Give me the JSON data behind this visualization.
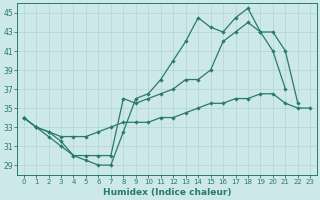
{
  "xlabel": "Humidex (Indice chaleur)",
  "bg_color": "#cce8e8",
  "grid_color": "#b0d4d4",
  "line_color": "#2a7a6a",
  "xlim": [
    -0.5,
    23.5
  ],
  "ylim": [
    28.0,
    46.0
  ],
  "yticks": [
    29,
    31,
    33,
    35,
    37,
    39,
    41,
    43,
    45
  ],
  "xticks": [
    0,
    1,
    2,
    3,
    4,
    5,
    6,
    7,
    8,
    9,
    10,
    11,
    12,
    13,
    14,
    15,
    16,
    17,
    18,
    19,
    20,
    21,
    22,
    23
  ],
  "line1_x": [
    0,
    1,
    2,
    3,
    4,
    5,
    6,
    7,
    8,
    9,
    10,
    11,
    12,
    13,
    14,
    15,
    16,
    17,
    18,
    19,
    20,
    21
  ],
  "line1_y": [
    34,
    33,
    32,
    31,
    30,
    29.5,
    29,
    29,
    32.5,
    36,
    36.5,
    38,
    40,
    42,
    44.5,
    43.5,
    43,
    44.5,
    45.5,
    43,
    41,
    37
  ],
  "line2_x": [
    0,
    1,
    2,
    3,
    4,
    5,
    6,
    7,
    8,
    9,
    10,
    11,
    12,
    13,
    14,
    15,
    16,
    17,
    18,
    19,
    20,
    21,
    22,
    23
  ],
  "line2_y": [
    34,
    33,
    32.5,
    31.5,
    30,
    30,
    30,
    30,
    36,
    35.5,
    36,
    36.5,
    37,
    38,
    38,
    39,
    42,
    43,
    44,
    43,
    43,
    41,
    35.5,
    null
  ],
  "line3_x": [
    0,
    1,
    2,
    3,
    4,
    5,
    6,
    7,
    8,
    9,
    10,
    11,
    12,
    13,
    14,
    15,
    16,
    17,
    18,
    19,
    20,
    21,
    22,
    23
  ],
  "line3_y": [
    34,
    33,
    32.5,
    32,
    32,
    32,
    32.5,
    33,
    33.5,
    33.5,
    33.5,
    34,
    34,
    34.5,
    35,
    35.5,
    35.5,
    36,
    36,
    36.5,
    36.5,
    35.5,
    35,
    35
  ]
}
